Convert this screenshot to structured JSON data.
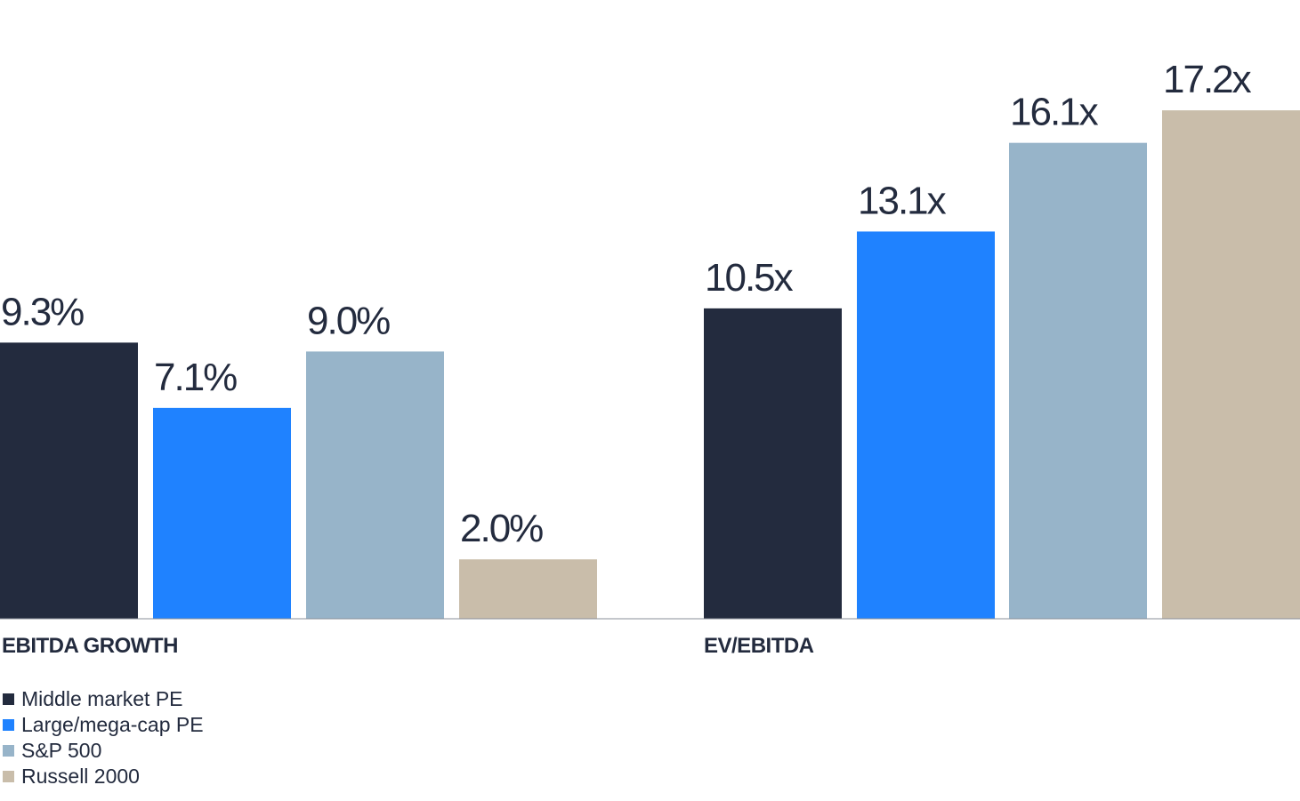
{
  "chart_data": {
    "type": "bar",
    "colors": [
      "#232b3e",
      "#1f82ff",
      "#97b4c9",
      "#c9bdaa"
    ],
    "legend_position": "bottom-left",
    "grid": false,
    "series": [
      {
        "name": "Middle market PE"
      },
      {
        "name": "Large/mega-cap PE"
      },
      {
        "name": "S&P 500"
      },
      {
        "name": "Russell 2000"
      }
    ],
    "groups": [
      {
        "label": "EBITDA GROWTH",
        "values": [
          9.3,
          7.1,
          9.0,
          2.0
        ],
        "value_labels": [
          "9.3%",
          "7.1%",
          "9.0%",
          "2.0%"
        ]
      },
      {
        "label": "EV/EBITDA",
        "values": [
          10.5,
          13.1,
          16.1,
          17.2
        ],
        "value_labels": [
          "10.5x",
          "13.1x",
          "16.1x",
          "17.2x"
        ]
      }
    ]
  }
}
